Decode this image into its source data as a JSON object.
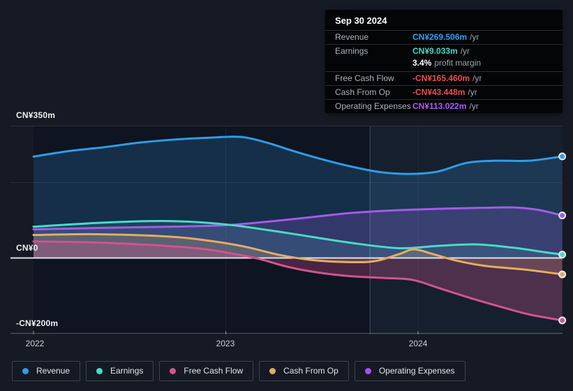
{
  "page": {
    "background": "#151A24"
  },
  "tooltip": {
    "title": "Sep 30 2024",
    "rows": [
      {
        "label": "Revenue",
        "value": "CN¥269.506m",
        "unit": "/yr",
        "color": "#2FA2EE"
      },
      {
        "label": "Earnings",
        "value": "CN¥9.033m",
        "unit": "/yr",
        "color": "#40D9C4",
        "extra_value": "3.4%",
        "extra_label": "profit margin"
      },
      {
        "label": "Free Cash Flow",
        "value": "-CN¥165.460m",
        "unit": "/yr",
        "color": "#ED4E50"
      },
      {
        "label": "Cash From Op",
        "value": "-CN¥43.448m",
        "unit": "/yr",
        "color": "#ED4E50"
      },
      {
        "label": "Operating Expenses",
        "value": "CN¥113.022m",
        "unit": "/yr",
        "color": "#AE5BF0"
      }
    ]
  },
  "legend": {
    "items": [
      {
        "label": "Revenue",
        "color": "#2E9DE5"
      },
      {
        "label": "Earnings",
        "color": "#48DBC8"
      },
      {
        "label": "Free Cash Flow",
        "color": "#D2538F"
      },
      {
        "label": "Cash From Op",
        "color": "#E5AC62"
      },
      {
        "label": "Operating Expenses",
        "color": "#AC4FF0"
      }
    ]
  },
  "chart_data": {
    "type": "area",
    "y_unit": "CN¥ millions",
    "ylim": [
      -200,
      350
    ],
    "xlim": [
      2022,
      2024.75
    ],
    "grid": true,
    "legend_position": "bottom-left",
    "yticks": [
      {
        "value": 350,
        "label": "CN¥350m"
      },
      {
        "value": 200,
        "label": ""
      },
      {
        "value": 0,
        "label": "CN¥0"
      },
      {
        "value": -200,
        "label": "-CN¥200m"
      }
    ],
    "xticks": [
      {
        "value": 2022,
        "label": "2022"
      },
      {
        "value": 2023,
        "label": "2023"
      },
      {
        "value": 2024,
        "label": "2024"
      }
    ],
    "highlight_from_x": 2023.75,
    "series": [
      {
        "name": "Revenue",
        "color": "#2E9DE5",
        "fill": "rgba(46,157,229,0.20)",
        "points": [
          [
            2022.0,
            269
          ],
          [
            2022.19,
            284
          ],
          [
            2022.37,
            294
          ],
          [
            2022.55,
            306
          ],
          [
            2022.73,
            314
          ],
          [
            2022.91,
            319
          ],
          [
            2023.08,
            321
          ],
          [
            2023.22,
            305
          ],
          [
            2023.35,
            284
          ],
          [
            2023.5,
            262
          ],
          [
            2023.64,
            244
          ],
          [
            2023.8,
            228
          ],
          [
            2023.95,
            223
          ],
          [
            2024.1,
            229
          ],
          [
            2024.25,
            252
          ],
          [
            2024.4,
            258
          ],
          [
            2024.58,
            258
          ],
          [
            2024.75,
            269.506
          ]
        ]
      },
      {
        "name": "Operating Expenses",
        "color": "#A35BE8",
        "fill": "rgba(163,91,232,0.22)",
        "points": [
          [
            2022.0,
            76
          ],
          [
            2022.37,
            80
          ],
          [
            2022.73,
            83
          ],
          [
            2023.0,
            87
          ],
          [
            2023.21,
            96
          ],
          [
            2023.42,
            107
          ],
          [
            2023.64,
            119
          ],
          [
            2023.86,
            126
          ],
          [
            2024.08,
            130
          ],
          [
            2024.33,
            133
          ],
          [
            2024.5,
            134
          ],
          [
            2024.62,
            128
          ],
          [
            2024.75,
            113.022
          ]
        ]
      },
      {
        "name": "Earnings",
        "color": "#48DBC8",
        "fill": "rgba(72,219,200,0.13)",
        "points": [
          [
            2022.0,
            83
          ],
          [
            2022.37,
            94
          ],
          [
            2022.7,
            98
          ],
          [
            2023.0,
            89
          ],
          [
            2023.31,
            67
          ],
          [
            2023.64,
            41
          ],
          [
            2023.9,
            26
          ],
          [
            2024.1,
            32
          ],
          [
            2024.3,
            36
          ],
          [
            2024.5,
            27
          ],
          [
            2024.65,
            16
          ],
          [
            2024.75,
            9.033
          ]
        ]
      },
      {
        "name": "Cash From Op",
        "color": "#E5AC62",
        "fill": "rgba(229,172,98,0.22)",
        "points": [
          [
            2022.0,
            61
          ],
          [
            2022.33,
            63
          ],
          [
            2022.7,
            57
          ],
          [
            2022.91,
            46
          ],
          [
            2023.1,
            30
          ],
          [
            2023.28,
            8
          ],
          [
            2023.46,
            -6
          ],
          [
            2023.66,
            -11
          ],
          [
            2023.78,
            -8
          ],
          [
            2023.9,
            10
          ],
          [
            2023.98,
            23
          ],
          [
            2024.08,
            10
          ],
          [
            2024.2,
            -7
          ],
          [
            2024.35,
            -21
          ],
          [
            2024.56,
            -31
          ],
          [
            2024.75,
            -43.448
          ]
        ]
      },
      {
        "name": "Free Cash Flow",
        "color": "#D2538F",
        "fill": "rgba(210,83,143,0.30)",
        "points": [
          [
            2022.0,
            44
          ],
          [
            2022.33,
            41
          ],
          [
            2022.66,
            33
          ],
          [
            2022.88,
            24
          ],
          [
            2023.02,
            13
          ],
          [
            2023.17,
            -2
          ],
          [
            2023.31,
            -22
          ],
          [
            2023.46,
            -37
          ],
          [
            2023.64,
            -48
          ],
          [
            2023.82,
            -53
          ],
          [
            2023.97,
            -58
          ],
          [
            2024.11,
            -80
          ],
          [
            2024.29,
            -109
          ],
          [
            2024.44,
            -131
          ],
          [
            2024.58,
            -150
          ],
          [
            2024.75,
            -165.46
          ]
        ]
      }
    ]
  }
}
